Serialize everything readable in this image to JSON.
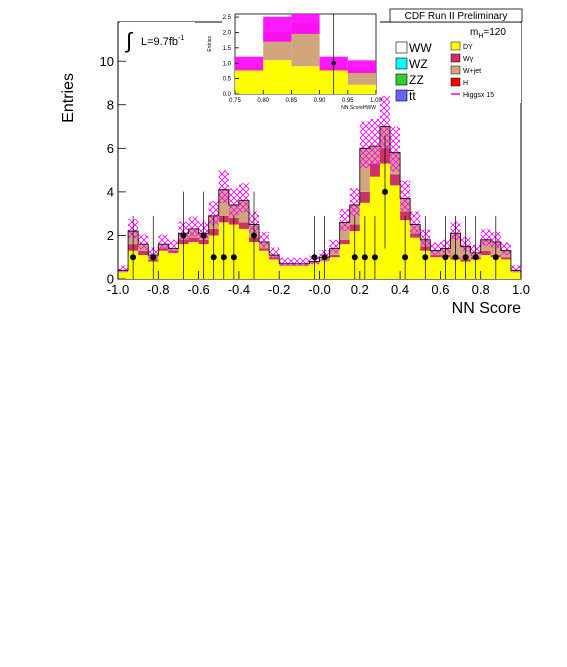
{
  "header": "CDF Run II Preliminary",
  "luminosity": "L=9.7fb",
  "luminosity_sup": "-1",
  "mass_label": "m",
  "mass_sub": "H",
  "mass_value": "=120",
  "legend": {
    "left": [
      "WW",
      "WZ",
      "ZZ",
      "t̅t"
    ],
    "right": [
      "DY",
      "Wγ",
      "W+jet",
      "H",
      "Higgsx 15"
    ]
  },
  "colors": {
    "ww": "#ffffff",
    "wz": "#00ffff",
    "zz": "#33cc33",
    "tt": "#6666ff",
    "dy": "#ffff00",
    "wg": "#cc3366",
    "wjet": "#d2a67d",
    "h": "#ff0000",
    "band": "#ff00ff",
    "data": "#000000"
  },
  "chart_data": [
    {
      "type": "bar",
      "title": "",
      "xlabel": "NN Score",
      "ylabel": "Entries",
      "xlim": [
        -1.0,
        1.0
      ],
      "ylim": [
        0,
        11.8
      ],
      "xticks": [
        "-1.0",
        "-0.8",
        "-0.6",
        "-0.4",
        "-0.2",
        "-0.0",
        "0.2",
        "0.4",
        "0.6",
        "0.8",
        "1.0"
      ],
      "yticks": [
        "0",
        "2",
        "4",
        "6",
        "8",
        "10"
      ],
      "bin_edges": [
        -1.0,
        -0.95,
        -0.9,
        -0.85,
        -0.8,
        -0.75,
        -0.7,
        -0.65,
        -0.6,
        -0.55,
        -0.5,
        -0.45,
        -0.4,
        -0.35,
        -0.3,
        -0.25,
        -0.2,
        -0.15,
        -0.1,
        -0.05,
        0.0,
        0.05,
        0.1,
        0.15,
        0.2,
        0.25,
        0.3,
        0.35,
        0.4,
        0.45,
        0.5,
        0.55,
        0.6,
        0.65,
        0.7,
        0.75,
        0.8,
        0.85,
        0.9,
        0.95,
        1.0
      ],
      "series": [
        {
          "name": "DY",
          "values": [
            0.3,
            1.3,
            1.1,
            0.8,
            1.3,
            1.2,
            1.6,
            1.7,
            1.6,
            2.0,
            2.6,
            2.5,
            2.3,
            1.7,
            1.3,
            0.9,
            0.6,
            0.6,
            0.6,
            0.7,
            0.8,
            1.0,
            1.6,
            2.2,
            3.5,
            4.7,
            5.3,
            4.3,
            2.7,
            1.9,
            1.3,
            1.0,
            1.0,
            0.9,
            0.8,
            0.9,
            1.1,
            1.0,
            0.9,
            0.3
          ]
        },
        {
          "name": "Wγ",
          "values": [
            0.0,
            0.3,
            0.2,
            0.1,
            0.1,
            0.1,
            0.2,
            0.2,
            0.2,
            0.3,
            0.3,
            0.3,
            0.3,
            0.2,
            0.1,
            0.1,
            0.0,
            0.0,
            0.0,
            0.0,
            0.0,
            0.1,
            0.2,
            0.3,
            0.5,
            0.6,
            0.7,
            0.5,
            0.4,
            0.2,
            0.2,
            0.1,
            0.1,
            0.1,
            0.1,
            0.1,
            0.2,
            0.1,
            0.1,
            0.0
          ]
        },
        {
          "name": "W+jet",
          "values": [
            0.1,
            0.6,
            0.3,
            0.2,
            0.2,
            0.1,
            0.3,
            0.4,
            0.3,
            0.6,
            1.2,
            0.6,
            1.0,
            0.6,
            0.3,
            0.1,
            0.1,
            0.1,
            0.1,
            0.1,
            0.2,
            0.3,
            0.8,
            0.9,
            2.0,
            0.8,
            1.0,
            1.0,
            0.6,
            0.4,
            0.3,
            0.2,
            0.3,
            1.1,
            0.6,
            0.2,
            0.5,
            0.6,
            0.3,
            0.1
          ]
        },
        {
          "name": "Higgsx 15",
          "values": [
            0.0,
            0.0,
            0.0,
            0.0,
            0.0,
            0.0,
            0.0,
            0.0,
            0.0,
            0.0,
            0.0,
            0.0,
            0.0,
            0.0,
            0.0,
            0.0,
            0.0,
            0.0,
            0.0,
            0.0,
            0.0,
            0.0,
            0.0,
            0.0,
            0.0,
            0.0,
            0.0,
            0.0,
            0.0,
            0.0,
            0.0,
            0.0,
            0.0,
            0.0,
            0.0,
            0.0,
            0.0,
            0.0,
            0.0,
            0.0
          ]
        }
      ],
      "data_points": {
        "x": [
          -0.925,
          -0.825,
          -0.675,
          -0.575,
          -0.525,
          -0.475,
          -0.425,
          -0.325,
          -0.025,
          0.025,
          0.175,
          0.225,
          0.275,
          0.325,
          0.425,
          0.525,
          0.625,
          0.675,
          0.725,
          0.775,
          0.875
        ],
        "y": [
          1,
          1,
          2,
          2,
          1,
          1,
          1,
          2,
          1,
          1,
          1,
          1,
          1,
          4,
          1,
          1,
          1,
          1,
          1,
          1,
          1
        ]
      }
    },
    {
      "type": "bar",
      "title": "",
      "xlabel": "NN ScoreHWW",
      "ylabel": "Entries",
      "xlim": [
        0.75,
        1.0
      ],
      "ylim": [
        0,
        2.6
      ],
      "xticks": [
        "0.75",
        "0.80",
        "0.85",
        "0.90",
        "0.95",
        "1.00"
      ],
      "yticks": [
        "0.0",
        "0.5",
        "1.0",
        "1.5",
        "2.0",
        "2.5"
      ],
      "bin_edges": [
        0.75,
        0.8,
        0.85,
        0.9,
        0.95,
        1.0
      ],
      "series": [
        {
          "name": "DY",
          "values": [
            0.9,
            1.1,
            0.9,
            0.9,
            0.3
          ]
        },
        {
          "name": "W+jet",
          "values": [
            0.0,
            0.9,
            1.4,
            0.0,
            0.5
          ]
        }
      ],
      "data_points": {
        "x": [
          0.925
        ],
        "y": [
          1
        ]
      }
    }
  ]
}
